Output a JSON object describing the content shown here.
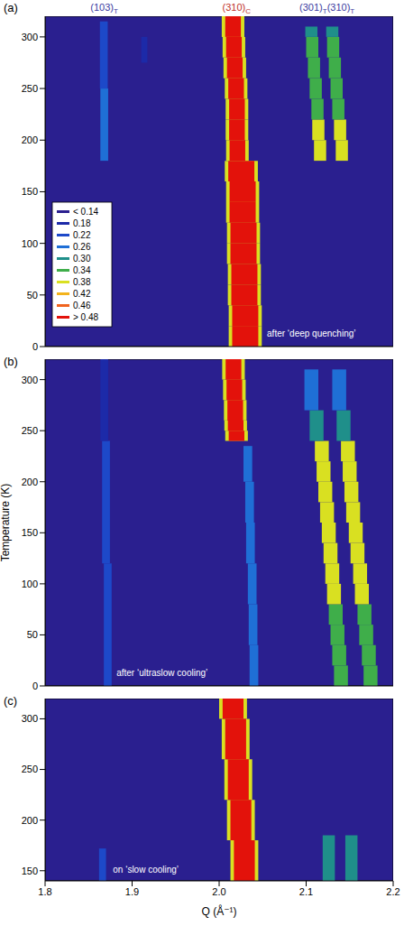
{
  "chart_data": [
    {
      "type": "heatmap",
      "panel": "(a)",
      "annotation": "after ‘deep quenching’",
      "peak_labels": [
        {
          "parts": [
            {
              "text": "(103)",
              "sub": "T"
            }
          ],
          "color": "#3a3aa0"
        },
        {
          "parts": [
            {
              "text": "(310)",
              "sub": "C"
            }
          ],
          "color": "#c0302a"
        },
        {
          "parts": [
            {
              "text": "(301)",
              "sub": "T"
            },
            {
              "text": "(310)",
              "sub": "T"
            }
          ],
          "color": "#3a3aa0"
        }
      ],
      "xlim": [
        1.8,
        2.2
      ],
      "ylim": [
        0,
        320
      ],
      "yticks": [
        0,
        50,
        100,
        150,
        200,
        250,
        300
      ],
      "tick_labels": "y",
      "legend": "lower left",
      "color_scale": {
        "levels": [
          {
            "value": 0.14,
            "label": "< 0.14",
            "color": "#2a1f8f"
          },
          {
            "value": 0.18,
            "label": "0.18",
            "color": "#1c2aa8"
          },
          {
            "value": 0.22,
            "label": "0.22",
            "color": "#1d49c9"
          },
          {
            "value": 0.26,
            "label": "0.26",
            "color": "#1f6fd6"
          },
          {
            "value": 0.3,
            "label": "0.30",
            "color": "#1f8f8a"
          },
          {
            "value": 0.34,
            "label": "0.34",
            "color": "#3fae4a"
          },
          {
            "value": 0.38,
            "label": "0.38",
            "color": "#d9e021"
          },
          {
            "value": 0.42,
            "label": "0.42",
            "color": "#f3b31c"
          },
          {
            "value": 0.46,
            "label": "0.46",
            "color": "#f0641e"
          },
          {
            "value": 0.48,
            "label": "> 0.48",
            "color": "#e3120b"
          }
        ]
      },
      "bands": [
        {
          "t": [
            0,
            20,
            40,
            60,
            80,
            100,
            120,
            140,
            160,
            180
          ],
          "q": [
            2.03,
            2.03,
            2.029,
            2.029,
            2.028,
            2.028,
            2.027,
            2.027,
            2.0255
          ],
          "width": 0.038,
          "intensity": [
            0.38,
            0.38,
            0.38,
            0.38,
            0.38,
            0.38,
            0.38,
            0.38,
            0.38
          ]
        },
        {
          "t": [
            0,
            20,
            40,
            60,
            80,
            100,
            120,
            140,
            160,
            180
          ],
          "q": [
            2.03,
            2.03,
            2.029,
            2.029,
            2.028,
            2.028,
            2.027,
            2.027,
            2.0255
          ],
          "width": 0.03,
          "intensity": [
            0.5,
            0.5,
            0.5,
            0.5,
            0.5,
            0.5,
            0.5,
            0.5,
            0.5
          ]
        },
        {
          "t": [
            180,
            200,
            220,
            240,
            260,
            280,
            300,
            320
          ],
          "q": [
            2.021,
            2.0205,
            2.0205,
            2.0195,
            2.018,
            2.017,
            2.016
          ],
          "width": 0.026,
          "intensity": [
            0.38,
            0.38,
            0.38,
            0.38,
            0.38,
            0.38,
            0.38
          ]
        },
        {
          "t": [
            180,
            200,
            220,
            240,
            260,
            280,
            300,
            320
          ],
          "q": [
            2.021,
            2.0205,
            2.0205,
            2.0195,
            2.018,
            2.017,
            2.016
          ],
          "width": 0.018,
          "intensity": [
            0.5,
            0.5,
            0.5,
            0.5,
            0.5,
            0.5,
            0.5
          ]
        },
        {
          "t": [
            180,
            200,
            220,
            240,
            260,
            280,
            300,
            310
          ],
          "q": [
            2.116,
            2.114,
            2.113,
            2.111,
            2.109,
            2.107,
            2.106
          ],
          "width": 0.014,
          "intensity": [
            0.38,
            0.38,
            0.34,
            0.34,
            0.32,
            0.32,
            0.3
          ]
        },
        {
          "t": [
            180,
            200,
            220,
            240,
            260,
            280,
            300,
            310
          ],
          "q": [
            2.141,
            2.139,
            2.137,
            2.135,
            2.133,
            2.131,
            2.13
          ],
          "width": 0.014,
          "intensity": [
            0.38,
            0.38,
            0.34,
            0.34,
            0.32,
            0.32,
            0.3
          ]
        },
        {
          "t": [
            180,
            250,
            315
          ],
          "q": [
            1.868,
            1.8675
          ],
          "width": 0.009,
          "intensity": [
            0.24,
            0.22
          ]
        },
        {
          "t": [
            275,
            300
          ],
          "q": [
            1.914
          ],
          "width": 0.007,
          "intensity": [
            0.18
          ]
        }
      ]
    },
    {
      "type": "heatmap",
      "panel": "(b)",
      "annotation": "after ‘ultraslow cooling’",
      "ylabel": "Temperature (K)",
      "xlim": [
        1.8,
        2.2
      ],
      "ylim": [
        0,
        320
      ],
      "yticks": [
        0,
        50,
        100,
        150,
        200,
        250,
        300
      ],
      "tick_labels": "y",
      "bands": [
        {
          "t": [
            240,
            250,
            260,
            280,
            300,
            320
          ],
          "q": [
            2.02,
            2.019,
            2.0185,
            2.0175,
            2.0165
          ],
          "width": 0.026,
          "intensity": [
            0.38,
            0.38,
            0.38,
            0.38,
            0.38
          ]
        },
        {
          "t": [
            240,
            250,
            260,
            280,
            300,
            320
          ],
          "q": [
            2.02,
            2.019,
            2.0185,
            2.0175,
            2.0165
          ],
          "width": 0.018,
          "intensity": [
            0.5,
            0.5,
            0.5,
            0.5,
            0.5
          ]
        },
        {
          "t": [
            0,
            40,
            80,
            120,
            160,
            200,
            235
          ],
          "q": [
            2.04,
            2.039,
            2.038,
            2.036,
            2.035,
            2.033
          ],
          "width": 0.01,
          "intensity": [
            0.24,
            0.24,
            0.24,
            0.26,
            0.26,
            0.24
          ]
        },
        {
          "t": [
            0,
            20,
            40,
            60,
            80,
            100,
            120,
            140,
            160,
            180,
            200,
            220,
            240,
            270,
            310
          ],
          "q": [
            2.14,
            2.138,
            2.136,
            2.134,
            2.132,
            2.13,
            2.128,
            2.126,
            2.124,
            2.122,
            2.12,
            2.118,
            2.112,
            2.106
          ],
          "width": 0.016,
          "intensity": [
            0.32,
            0.32,
            0.34,
            0.34,
            0.38,
            0.38,
            0.38,
            0.38,
            0.38,
            0.38,
            0.38,
            0.38,
            0.28,
            0.26
          ]
        },
        {
          "t": [
            0,
            20,
            40,
            60,
            80,
            100,
            120,
            140,
            160,
            180,
            200,
            220,
            240,
            270,
            310
          ],
          "q": [
            2.174,
            2.172,
            2.169,
            2.167,
            2.164,
            2.162,
            2.159,
            2.157,
            2.154,
            2.152,
            2.15,
            2.148,
            2.143,
            2.138
          ],
          "width": 0.016,
          "intensity": [
            0.32,
            0.32,
            0.34,
            0.34,
            0.38,
            0.38,
            0.38,
            0.38,
            0.38,
            0.38,
            0.38,
            0.38,
            0.28,
            0.26
          ]
        },
        {
          "t": [
            0,
            120,
            240,
            320
          ],
          "q": [
            1.872,
            1.87,
            1.868
          ],
          "width": 0.009,
          "intensity": [
            0.22,
            0.22,
            0.16
          ]
        }
      ]
    },
    {
      "type": "heatmap",
      "panel": "(c)",
      "annotation": "on ‘slow cooling’",
      "xlabel": "Q (Å⁻¹)",
      "xlim": [
        1.8,
        2.2
      ],
      "xticks": [
        1.8,
        1.9,
        {
          "value": 2,
          "label": "2.0"
        },
        2.1,
        2.2
      ],
      "ylim": [
        140,
        320
      ],
      "yticks": [
        150,
        200,
        250,
        300
      ],
      "bands": [
        {
          "t": [
            140,
            180,
            220,
            260,
            300,
            320
          ],
          "q": [
            2.029,
            2.025,
            2.022,
            2.019,
            2.016
          ],
          "width": 0.032,
          "intensity": [
            0.38,
            0.38,
            0.38,
            0.38,
            0.38
          ]
        },
        {
          "t": [
            140,
            180,
            220,
            260,
            300,
            320
          ],
          "q": [
            2.029,
            2.025,
            2.022,
            2.019,
            2.016
          ],
          "width": 0.024,
          "intensity": [
            0.5,
            0.5,
            0.5,
            0.5,
            0.5
          ]
        },
        {
          "t": [
            140,
            185
          ],
          "q": [
            2.126
          ],
          "width": 0.014,
          "intensity": [
            0.3
          ]
        },
        {
          "t": [
            140,
            185
          ],
          "q": [
            2.152
          ],
          "width": 0.014,
          "intensity": [
            0.3
          ]
        },
        {
          "t": [
            140,
            172
          ],
          "q": [
            1.866
          ],
          "width": 0.008,
          "intensity": [
            0.22
          ]
        }
      ]
    }
  ]
}
